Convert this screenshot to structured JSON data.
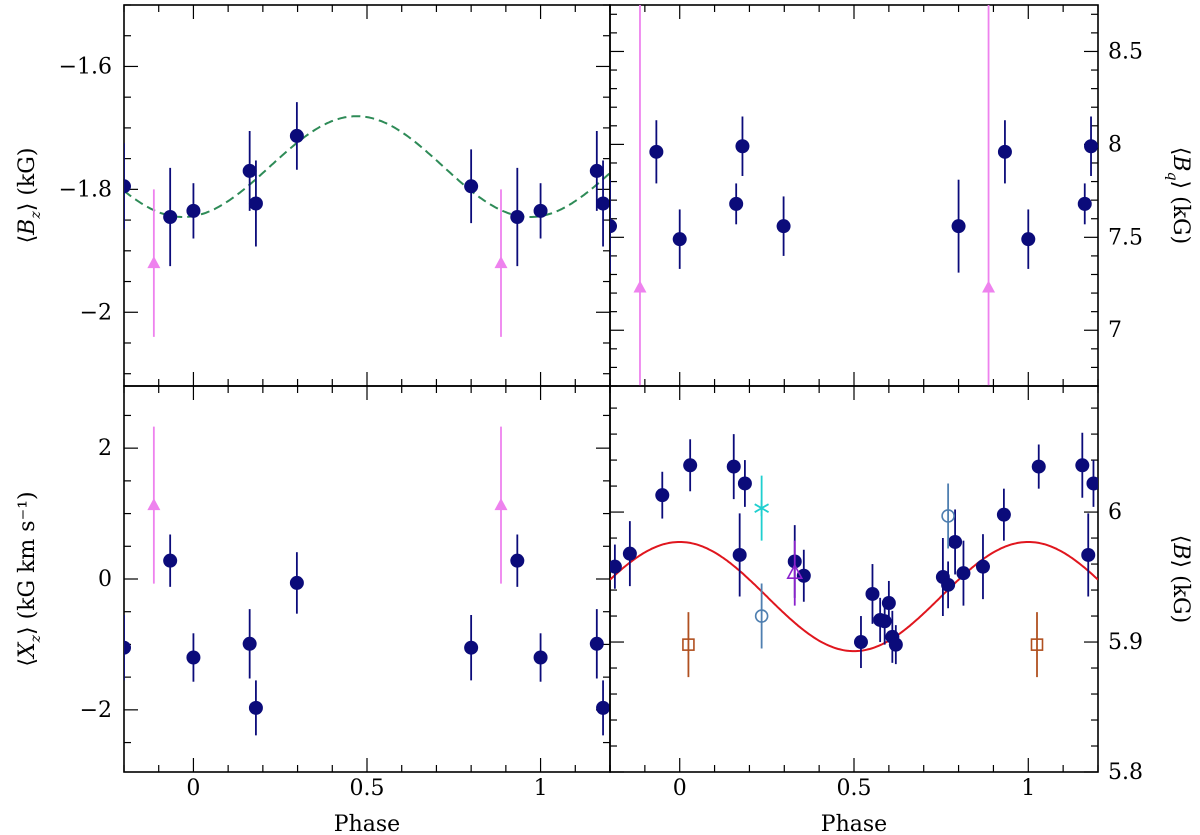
{
  "colors": {
    "navy": "#0b0b7a",
    "violet": "#ee82ee",
    "green_dashed": "#2e8b57",
    "red": "#e0161e",
    "cyan": "#1fcfcf",
    "steelblue": "#4f7fb0",
    "purple": "#8b22cc",
    "brown": "#b05020"
  },
  "chart_data": [
    {
      "id": "bz",
      "type": "scatter",
      "xlabel": "",
      "ylabel": "⟨B_z⟩ (kG)",
      "ylabel_left": "⟨",
      "ylabel_sym": "B",
      "ylabel_sub": "z",
      "ylabel_right": "⟩ (kG)",
      "xlim": [
        -0.2,
        1.2
      ],
      "ylim": [
        -2.12,
        -1.5
      ],
      "xticks": [
        0,
        0.5,
        1
      ],
      "xticklabels": [
        "",
        "",
        ""
      ],
      "yticks": [
        -1.6,
        -1.8,
        -2.0
      ],
      "yticklabels": [
        "−1.6",
        "−1.8",
        "−2"
      ],
      "yminor_step": 0.05,
      "series": [
        {
          "name": "circles",
          "marker": "circle",
          "color": "navy",
          "x": [
            -0.2,
            -0.067,
            0.0,
            0.162,
            0.18,
            0.298,
            0.8,
            0.933,
            1.0,
            1.162,
            1.18
          ],
          "y": [
            -1.795,
            -1.845,
            -1.835,
            -1.77,
            -1.823,
            -1.713,
            -1.795,
            -1.845,
            -1.835,
            -1.77,
            -1.823
          ],
          "err": [
            0.07,
            0.08,
            0.045,
            0.065,
            0.07,
            0.055,
            0.06,
            0.08,
            0.045,
            0.065,
            0.07
          ]
        },
        {
          "name": "triangles",
          "marker": "triangle",
          "color": "violet",
          "x": [
            -0.114,
            0.886
          ],
          "y": [
            -1.92,
            -1.92
          ],
          "err": [
            0.12,
            0.12
          ]
        }
      ],
      "curve": {
        "style": "dashed",
        "color": "green_dashed",
        "mean": -1.763,
        "amp": 0.082,
        "phase_min": -0.03
      }
    },
    {
      "id": "bq",
      "type": "scatter",
      "xlabel": "",
      "ylabel": "⟨B_q⟩ (kG)",
      "ylabel_left": "⟨",
      "ylabel_sym": "B",
      "ylabel_sub": "q",
      "ylabel_right": "⟩ (kG)",
      "xlim": [
        -0.2,
        1.2
      ],
      "ylim": [
        6.7,
        8.75
      ],
      "xticks": [
        0,
        0.5,
        1
      ],
      "xticklabels": [
        "",
        "",
        ""
      ],
      "yticks": [
        7.0,
        7.5,
        8.0,
        8.5
      ],
      "yticklabels": [
        "7",
        "7.5",
        "8",
        "8.5"
      ],
      "yminor_step": 0.1,
      "series": [
        {
          "name": "circles",
          "marker": "circle",
          "color": "navy",
          "x": [
            -0.067,
            0.0,
            0.162,
            0.18,
            0.298,
            0.8,
            0.933,
            1.0,
            1.162,
            1.18,
            -0.2
          ],
          "y": [
            7.96,
            7.49,
            7.68,
            7.99,
            7.56,
            7.56,
            7.96,
            7.49,
            7.68,
            7.99,
            7.56
          ],
          "err": [
            0.17,
            0.16,
            0.11,
            0.16,
            0.16,
            0.25,
            0.17,
            0.16,
            0.11,
            0.16,
            0.25
          ]
        },
        {
          "name": "triangles",
          "marker": "triangle",
          "color": "violet",
          "x": [
            -0.114,
            0.886
          ],
          "y": [
            7.23,
            7.23
          ],
          "err": [
            1.6,
            1.6
          ]
        }
      ]
    },
    {
      "id": "xz",
      "type": "scatter",
      "xlabel": "Phase",
      "ylabel": "⟨X_z⟩ (kG km s⁻¹)",
      "ylabel_left": "⟨",
      "ylabel_sym": "X",
      "ylabel_sub": "z",
      "ylabel_right": "⟩ (kG km s⁻¹)",
      "xlim": [
        -0.2,
        1.2
      ],
      "ylim": [
        -2.95,
        2.95
      ],
      "xticks": [
        0,
        0.5,
        1
      ],
      "xticklabels": [
        "0",
        "0.5",
        "1"
      ],
      "yticks": [
        -2,
        0,
        2
      ],
      "yticklabels": [
        "−2",
        "0",
        "2"
      ],
      "yminor_step": 0.5,
      "series": [
        {
          "name": "circles",
          "marker": "circle",
          "color": "navy",
          "x": [
            -0.2,
            -0.067,
            0.0,
            0.162,
            0.18,
            0.298,
            0.8,
            0.933,
            1.0,
            1.162,
            1.18
          ],
          "y": [
            -1.05,
            0.28,
            -1.2,
            -0.99,
            -1.97,
            -0.06,
            -1.05,
            0.28,
            -1.2,
            -0.99,
            -1.97
          ],
          "err": [
            0.5,
            0.4,
            0.37,
            0.53,
            0.42,
            0.47,
            0.5,
            0.4,
            0.37,
            0.53,
            0.42
          ]
        },
        {
          "name": "triangles",
          "marker": "triangle",
          "color": "violet",
          "x": [
            -0.114,
            0.886
          ],
          "y": [
            1.13,
            1.13
          ],
          "err": [
            1.2,
            1.2
          ]
        }
      ]
    },
    {
      "id": "bmod",
      "type": "scatter",
      "xlabel": "Phase",
      "ylabel": "⟨B⟩ (kG)",
      "ylabel_left": "⟨",
      "ylabel_sym": "B",
      "ylabel_sub": "",
      "ylabel_right": "⟩ (kG)",
      "xlim": [
        -0.2,
        1.2
      ],
      "ylim": [
        5.8,
        6.097
      ],
      "xticks": [
        0,
        0.5,
        1
      ],
      "xticklabels": [
        "0",
        "0.5",
        "1"
      ],
      "yticks": [
        5.8,
        5.9,
        6.0
      ],
      "yticklabels": [
        "5.8",
        "5.9",
        "6"
      ],
      "yminor_step": 0.02,
      "series": [
        {
          "name": "circles",
          "marker": "circle",
          "color": "navy",
          "x": [
            -0.186,
            -0.143,
            -0.05,
            0.03,
            0.155,
            0.172,
            0.187,
            0.33,
            0.356,
            0.52,
            0.553,
            0.575,
            0.588,
            0.6,
            0.61,
            0.62,
            0.755,
            0.77,
            0.79,
            0.814,
            0.87,
            0.93,
            1.03,
            1.155,
            1.172,
            1.187
          ],
          "y": [
            5.958,
            5.968,
            6.013,
            6.036,
            6.035,
            5.967,
            6.022,
            5.962,
            5.951,
            5.9,
            5.937,
            5.917,
            5.916,
            5.93,
            5.904,
            5.898,
            5.95,
            5.944,
            5.977,
            5.953,
            5.958,
            5.998,
            6.035,
            6.036,
            5.967,
            6.022
          ],
          "err": [
            0.017,
            0.025,
            0.018,
            0.02,
            0.025,
            0.032,
            0.018,
            0.028,
            0.02,
            0.02,
            0.023,
            0.017,
            0.018,
            0.017,
            0.02,
            0.015,
            0.03,
            0.018,
            0.025,
            0.025,
            0.025,
            0.02,
            0.017,
            0.025,
            0.032,
            0.018
          ]
        },
        {
          "name": "star",
          "marker": "star",
          "color": "cyan",
          "x": [
            0.235
          ],
          "y": [
            6.003
          ],
          "err": [
            0.025
          ]
        },
        {
          "name": "open-circles",
          "marker": "open-circle",
          "color": "steelblue",
          "x": [
            0.235,
            0.77
          ],
          "y": [
            5.92,
            5.997
          ],
          "err": [
            0.025,
            0.025
          ]
        },
        {
          "name": "open-triangle",
          "marker": "open-triangle",
          "color": "purple",
          "x": [
            0.33
          ],
          "y": [
            5.953
          ],
          "err": [
            0.025
          ]
        },
        {
          "name": "open-squares",
          "marker": "open-square",
          "color": "brown",
          "x": [
            0.025,
            1.025
          ],
          "y": [
            5.898,
            5.898
          ],
          "err": [
            0.025,
            0.025
          ]
        }
      ],
      "curve": {
        "style": "solid",
        "color": "red",
        "mean": 5.935,
        "amp": 0.042,
        "phase_max": 0.0
      }
    }
  ]
}
